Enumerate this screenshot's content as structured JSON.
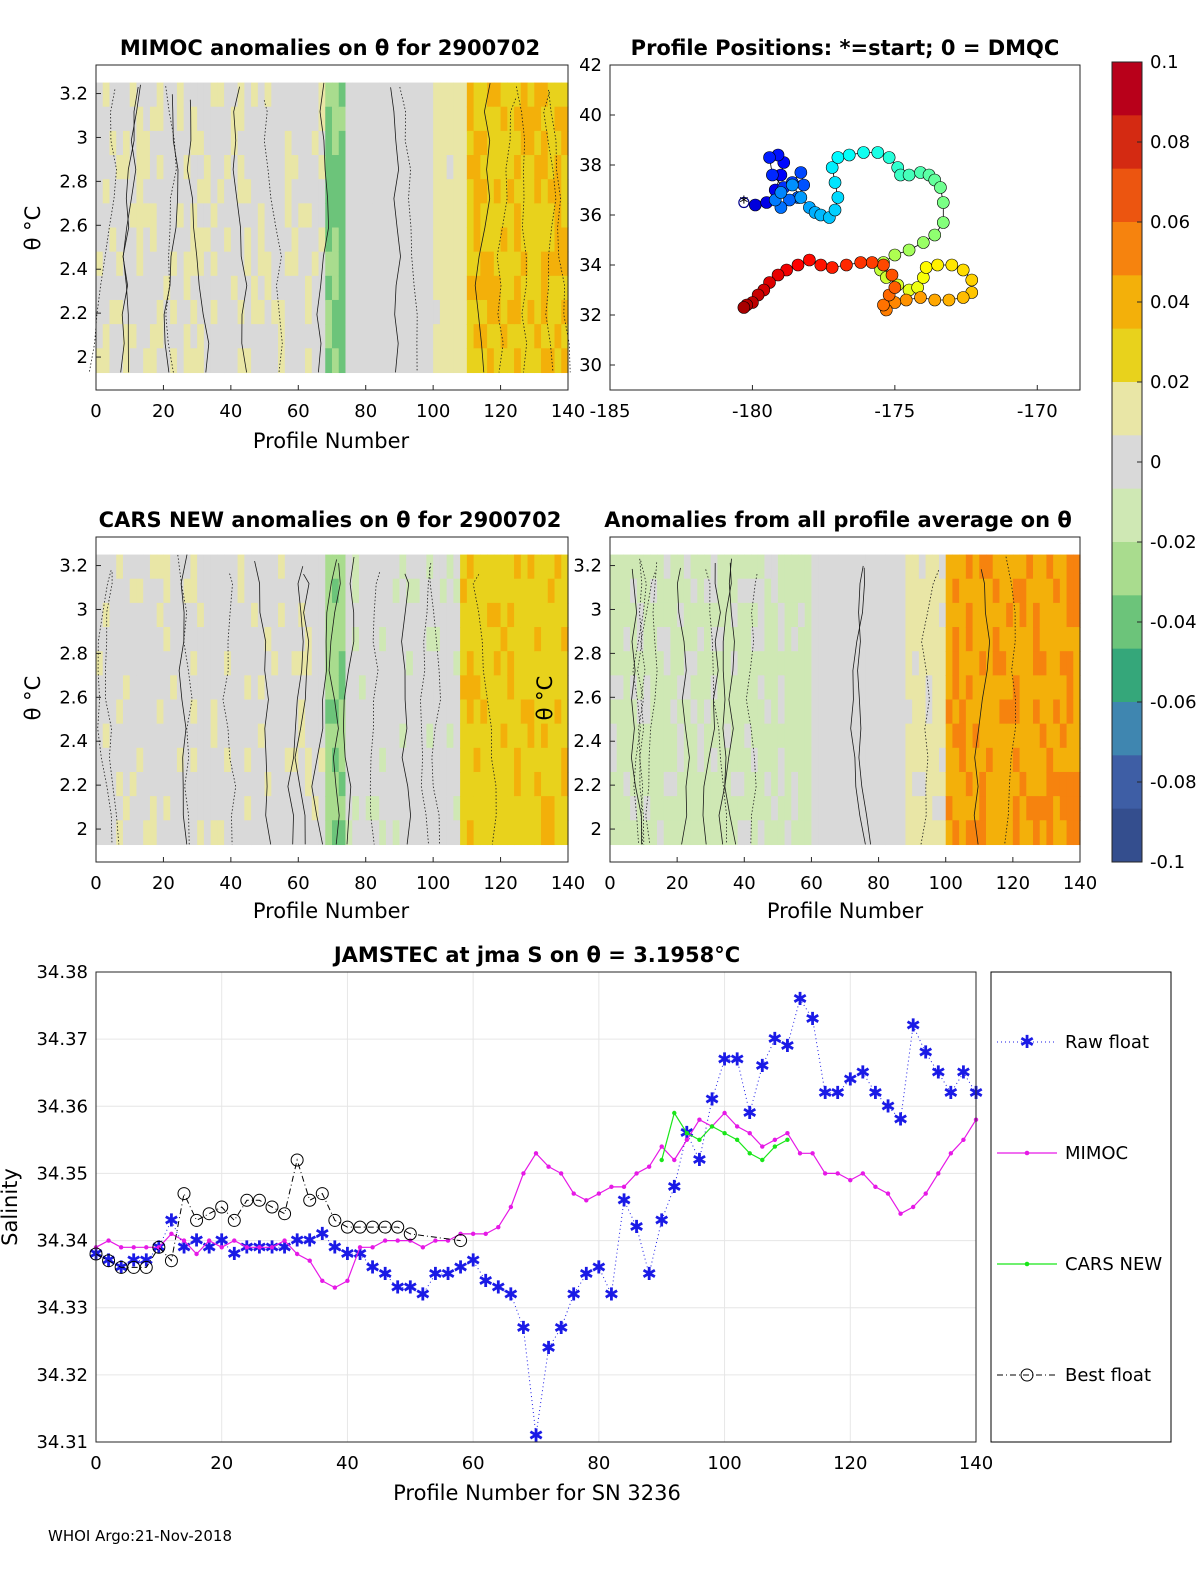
{
  "footer": "WHOI Argo:21-Nov-2018",
  "colorbar": {
    "ticks": [
      "0.1",
      "0.08",
      "0.06",
      "0.04",
      "0.02",
      "0",
      "-0.02",
      "-0.04",
      "-0.06",
      "-0.08",
      "-0.1"
    ],
    "colors": [
      "#b8001a",
      "#d42a12",
      "#ec5510",
      "#f6830e",
      "#f3b00a",
      "#e8d21c",
      "#e9e6a6",
      "#d9d9d9",
      "#cfe8b4",
      "#a9dc8e",
      "#6cc47a",
      "#35a77a",
      "#3f86b0",
      "#3e5ea5",
      "#344e8e"
    ]
  },
  "panels": {
    "mimoc": {
      "title": "MIMOC anomalies on θ  for 2900702",
      "xlabel": "Profile Number",
      "ylabel": "θ °C",
      "xticks": [
        "0",
        "20",
        "40",
        "60",
        "80",
        "100",
        "120",
        "140"
      ],
      "yticks": [
        "2",
        "2.2",
        "2.4",
        "2.6",
        "2.8",
        "3",
        "3.2"
      ]
    },
    "positions": {
      "title": "Profile Positions: *=start; 0 = DMQC",
      "xticks": [
        "-185",
        "-180",
        "-175",
        "-170"
      ],
      "yticks": [
        "30",
        "32",
        "34",
        "36",
        "38",
        "40",
        "42"
      ]
    },
    "cars": {
      "title": "CARS NEW anomalies on θ for 2900702",
      "xlabel": "Profile Number",
      "ylabel": "θ °C",
      "xticks": [
        "0",
        "20",
        "40",
        "60",
        "80",
        "100",
        "120",
        "140"
      ],
      "yticks": [
        "2",
        "2.2",
        "2.4",
        "2.6",
        "2.8",
        "3",
        "3.2"
      ]
    },
    "avg": {
      "title": "Anomalies from all profile average on θ",
      "xlabel": "Profile Number",
      "ylabel": "θ °C",
      "xticks": [
        "0",
        "20",
        "40",
        "60",
        "80",
        "100",
        "120",
        "140"
      ],
      "yticks": [
        "2",
        "2.2",
        "2.4",
        "2.6",
        "2.8",
        "3",
        "3.2"
      ]
    }
  },
  "chart_data": [
    {
      "type": "heatmap",
      "title": "MIMOC anomalies on θ  for 2900702",
      "xlabel": "Profile Number",
      "ylabel": "θ °C",
      "xlim": [
        0,
        140
      ],
      "ylim": [
        1.85,
        3.33
      ],
      "bands": [
        {
          "x": [
            0,
            68
          ],
          "anomaly": 0.005
        },
        {
          "x": [
            68,
            74
          ],
          "anomaly": -0.035
        },
        {
          "x": [
            74,
            100
          ],
          "anomaly": 0.0
        },
        {
          "x": [
            100,
            110
          ],
          "anomaly": 0.012
        },
        {
          "x": [
            110,
            140
          ],
          "anomaly": 0.032
        }
      ]
    },
    {
      "type": "scatter",
      "title": "Profile Positions: *=start; 0 = DMQC",
      "xlim": [
        -185,
        -168.5
      ],
      "ylim": [
        29,
        42
      ],
      "x": [
        -180.3,
        -179.9,
        -179.5,
        -179.2,
        -179.0,
        -178.9,
        -179.1,
        -179.4,
        -179.3,
        -178.9,
        -178.6,
        -178.3,
        -178.2,
        -178.4,
        -178.7,
        -179.0,
        -179.2,
        -179.0,
        -178.6,
        -178.3,
        -178.0,
        -177.8,
        -177.6,
        -177.3,
        -177.1,
        -177.0,
        -177.1,
        -177.2,
        -177.0,
        -176.6,
        -176.1,
        -175.6,
        -175.2,
        -174.9,
        -174.8,
        -174.5,
        -174.1,
        -173.8,
        -173.6,
        -173.4,
        -173.3,
        -173.3,
        -173.6,
        -174.0,
        -174.5,
        -175.0,
        -175.4,
        -175.5,
        -175.3,
        -174.9,
        -174.5,
        -174.2,
        -174.0,
        -173.9,
        -173.5,
        -173.0,
        -172.6,
        -172.3,
        -172.3,
        -172.6,
        -173.1,
        -173.6,
        -174.1,
        -174.6,
        -175.0,
        -175.3,
        -175.4,
        -175.2,
        -175.0,
        -175.1,
        -175.4,
        -175.8,
        -176.2,
        -176.7,
        -177.2,
        -177.6,
        -178.0,
        -178.4,
        -178.8,
        -179.1,
        -179.4,
        -179.6,
        -179.8,
        -180.0,
        -180.2,
        -180.3
      ],
      "y": [
        36.5,
        36.4,
        36.5,
        37.0,
        37.6,
        38.1,
        38.4,
        38.3,
        37.6,
        37.1,
        37.3,
        37.7,
        37.2,
        36.7,
        36.6,
        36.3,
        36.6,
        36.9,
        37.2,
        36.7,
        36.3,
        36.1,
        36.0,
        35.9,
        36.2,
        36.7,
        37.3,
        37.9,
        38.3,
        38.4,
        38.5,
        38.5,
        38.3,
        37.9,
        37.6,
        37.6,
        37.7,
        37.6,
        37.4,
        37.1,
        36.5,
        35.7,
        35.2,
        34.9,
        34.6,
        34.4,
        34.1,
        33.8,
        33.5,
        33.2,
        33.0,
        33.1,
        33.5,
        33.9,
        34.0,
        34.0,
        33.8,
        33.4,
        32.9,
        32.7,
        32.6,
        32.6,
        32.7,
        32.6,
        32.5,
        32.2,
        32.4,
        32.8,
        33.1,
        33.6,
        34.0,
        34.1,
        34.1,
        34.0,
        33.9,
        34.0,
        34.2,
        34.0,
        33.8,
        33.6,
        33.3,
        33.0,
        32.8,
        32.5,
        32.4,
        32.3
      ]
    },
    {
      "type": "heatmap",
      "title": "CARS NEW anomalies on θ for 2900702",
      "xlabel": "Profile Number",
      "ylabel": "θ °C",
      "xlim": [
        0,
        140
      ],
      "ylim": [
        1.85,
        3.33
      ],
      "bands": [
        {
          "x": [
            0,
            68
          ],
          "anomaly": 0.003
        },
        {
          "x": [
            68,
            74
          ],
          "anomaly": -0.03
        },
        {
          "x": [
            74,
            108
          ],
          "anomaly": -0.002
        },
        {
          "x": [
            108,
            140
          ],
          "anomaly": 0.03
        }
      ]
    },
    {
      "type": "heatmap",
      "title": "Anomalies from all profile average on θ",
      "xlabel": "Profile Number",
      "ylabel": "θ °C",
      "xlim": [
        0,
        140
      ],
      "ylim": [
        1.85,
        3.33
      ],
      "bands": [
        {
          "x": [
            0,
            60
          ],
          "anomaly": -0.01
        },
        {
          "x": [
            60,
            88
          ],
          "anomaly": 0.0
        },
        {
          "x": [
            88,
            100
          ],
          "anomaly": 0.01
        },
        {
          "x": [
            100,
            140
          ],
          "anomaly": 0.045
        }
      ]
    },
    {
      "type": "line",
      "title": "JAMSTEC at jma S on θ = 3.1958°C",
      "xlabel": "Profile Number for SN 3236",
      "ylabel": "Salinity",
      "xlim": [
        0,
        140
      ],
      "ylim": [
        34.31,
        34.38
      ],
      "xticks": [
        "0",
        "20",
        "40",
        "60",
        "80",
        "100",
        "120",
        "140"
      ],
      "yticks": [
        "34.31",
        "34.32",
        "34.33",
        "34.34",
        "34.35",
        "34.36",
        "34.37",
        "34.38"
      ],
      "series": [
        {
          "name": "Raw float",
          "color": "#1a1ae6",
          "x": [
            0,
            2,
            4,
            6,
            8,
            10,
            12,
            14,
            16,
            18,
            20,
            22,
            24,
            26,
            28,
            30,
            32,
            34,
            36,
            38,
            40,
            42,
            44,
            46,
            48,
            50,
            52,
            54,
            56,
            58,
            60,
            62,
            64,
            66,
            68,
            70,
            72,
            74,
            76,
            78,
            80,
            82,
            84,
            86,
            88,
            90,
            92,
            94,
            96,
            98,
            100,
            102,
            104,
            106,
            108,
            110,
            112,
            114,
            116,
            118,
            120,
            122,
            124,
            126,
            128,
            130,
            132,
            134,
            136,
            138,
            140
          ],
          "y": [
            34.338,
            34.337,
            34.336,
            34.337,
            34.337,
            34.339,
            34.343,
            34.339,
            34.34,
            34.339,
            34.34,
            34.338,
            34.339,
            34.339,
            34.339,
            34.339,
            34.34,
            34.34,
            34.341,
            34.339,
            34.338,
            34.338,
            34.336,
            34.335,
            34.333,
            34.333,
            34.332,
            34.335,
            34.335,
            34.336,
            34.337,
            34.334,
            34.333,
            34.332,
            34.327,
            34.311,
            34.324,
            34.327,
            34.332,
            34.335,
            34.336,
            34.332,
            34.346,
            34.342,
            34.335,
            34.343,
            34.348,
            34.356,
            34.352,
            34.361,
            34.367,
            34.367,
            34.359,
            34.366,
            34.37,
            34.369,
            34.376,
            34.373,
            34.362,
            34.362,
            34.364,
            34.365,
            34.362,
            34.36,
            34.358,
            34.372,
            34.368,
            34.365,
            34.362,
            34.365,
            34.362
          ]
        },
        {
          "name": "MIMOC",
          "color": "#e619e6",
          "x": [
            0,
            2,
            4,
            6,
            8,
            10,
            12,
            14,
            16,
            18,
            20,
            22,
            24,
            26,
            28,
            30,
            32,
            34,
            36,
            38,
            40,
            42,
            44,
            46,
            48,
            50,
            52,
            54,
            56,
            58,
            60,
            62,
            64,
            66,
            68,
            70,
            72,
            74,
            76,
            78,
            80,
            82,
            84,
            86,
            88,
            90,
            92,
            94,
            96,
            98,
            100,
            102,
            104,
            106,
            108,
            110,
            112,
            114,
            116,
            118,
            120,
            122,
            124,
            126,
            128,
            130,
            132,
            134,
            136,
            138,
            140
          ],
          "y": [
            34.339,
            34.34,
            34.339,
            34.339,
            34.339,
            34.339,
            34.341,
            34.34,
            34.338,
            34.34,
            34.339,
            34.34,
            34.339,
            34.339,
            34.339,
            34.34,
            34.338,
            34.337,
            34.334,
            34.333,
            34.334,
            34.339,
            34.339,
            34.34,
            34.34,
            34.34,
            34.339,
            34.34,
            34.34,
            34.341,
            34.341,
            34.341,
            34.342,
            34.345,
            34.35,
            34.353,
            34.351,
            34.35,
            34.347,
            34.346,
            34.347,
            34.348,
            34.348,
            34.35,
            34.351,
            34.354,
            34.352,
            34.355,
            34.358,
            34.357,
            34.359,
            34.357,
            34.356,
            34.354,
            34.355,
            34.356,
            34.353,
            34.353,
            34.35,
            34.35,
            34.349,
            34.35,
            34.348,
            34.347,
            34.344,
            34.345,
            34.347,
            34.35,
            34.353,
            34.355,
            34.358
          ]
        },
        {
          "name": "CARS NEW",
          "color": "#19e619",
          "x": [
            90,
            92,
            94,
            96,
            98,
            100,
            102,
            104,
            106,
            108,
            110
          ],
          "y": [
            34.352,
            34.359,
            34.356,
            34.355,
            34.357,
            34.356,
            34.355,
            34.353,
            34.352,
            34.354,
            34.355
          ]
        },
        {
          "name": "Best float",
          "color": "#000000",
          "x": [
            0,
            2,
            4,
            6,
            8,
            10,
            12,
            14,
            16,
            18,
            20,
            22,
            24,
            26,
            28,
            30,
            32,
            34,
            36,
            38,
            40,
            42,
            44,
            46,
            48,
            50,
            58
          ],
          "y": [
            34.338,
            34.337,
            34.336,
            34.336,
            34.336,
            34.339,
            34.337,
            34.347,
            34.343,
            34.344,
            34.345,
            34.343,
            34.346,
            34.346,
            34.345,
            34.344,
            34.352,
            34.346,
            34.347,
            34.343,
            34.342,
            34.342,
            34.342,
            34.342,
            34.342,
            34.341,
            34.34
          ]
        }
      ]
    }
  ]
}
